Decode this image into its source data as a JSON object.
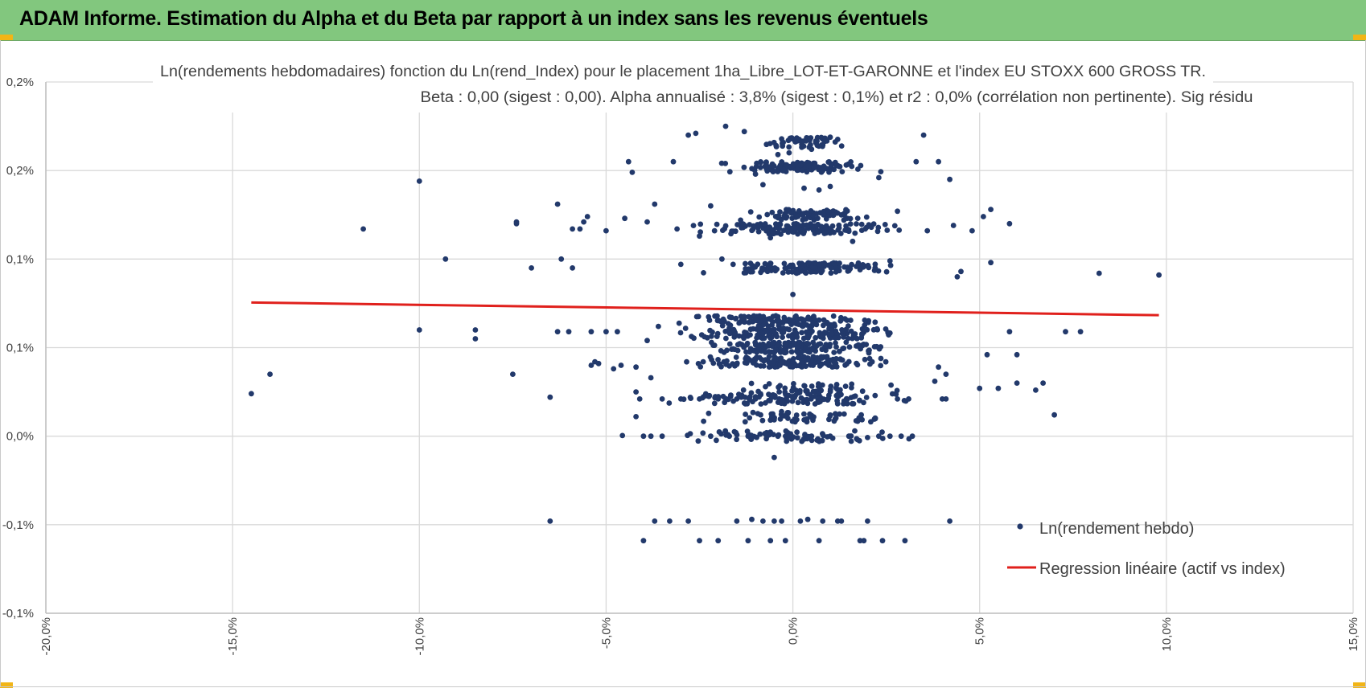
{
  "header": {
    "title": "ADAM Informe. Estimation du Alpha et du Beta par rapport à un index sans les revenus éventuels",
    "bg_color": "#82c77e",
    "corner_color": "#f2b516"
  },
  "chart_data": {
    "type": "scatter",
    "title_line1": "Ln(rendements hebdomadaires) fonction du Ln(rend_Index) pour le placement 1ha_Libre_LOT-ET-GARONNE et l'index EU STOXX 600 GROSS TR.",
    "title_line2": "Beta : 0,00 (sigest : 0,00). Alpha annualisé : 3,8% (sigest : 0,1%) et r2 : 0,0% (corrélation non pertinente). Sig résidu",
    "x_unit": "%",
    "xlim": [
      -20,
      15
    ],
    "ylim": [
      -0.1,
      0.2
    ],
    "x_tick_values": [
      -20,
      -15,
      -10,
      -5,
      0,
      5,
      10,
      15
    ],
    "x_tick_labels": [
      "-20,0%",
      "-15,0%",
      "-10,0%",
      "-5,0%",
      "0,0%",
      "5,0%",
      "10,0%",
      "15,0%"
    ],
    "y_tick_values": [
      -0.1,
      -0.05,
      0,
      0.05,
      0.1,
      0.15,
      0.2
    ],
    "y_tick_labels": [
      "-0,1%",
      "-0,1%",
      "0,0%",
      "0,1%",
      "0,1%",
      "0,2%",
      "0,2%"
    ],
    "grid": true,
    "legend_position": "bottom-right",
    "series": [
      {
        "name": "Ln(rendement hebdo)",
        "kind": "scatter",
        "color": "#22396b",
        "points": [
          [
            -14.5,
            0.024
          ],
          [
            -14.0,
            0.035
          ],
          [
            -11.5,
            0.117
          ],
          [
            -10.0,
            0.144
          ],
          [
            -10.0,
            0.06
          ],
          [
            -9.3,
            0.1
          ],
          [
            -8.5,
            0.06
          ],
          [
            -8.5,
            0.055
          ],
          [
            -7.5,
            0.035
          ],
          [
            -7.4,
            0.12
          ],
          [
            -7.4,
            0.121
          ],
          [
            -7.0,
            0.095
          ],
          [
            -6.5,
            0.022
          ],
          [
            -6.5,
            -0.048
          ],
          [
            -6.3,
            0.131
          ],
          [
            -6.3,
            0.059
          ],
          [
            -6.2,
            0.1
          ],
          [
            -6.0,
            0.059
          ],
          [
            -5.9,
            0.095
          ],
          [
            -5.9,
            0.117
          ],
          [
            -5.7,
            0.117
          ],
          [
            -5.6,
            0.121
          ],
          [
            -5.5,
            0.124
          ],
          [
            -5.4,
            0.059
          ],
          [
            -5.4,
            0.04
          ],
          [
            -5.3,
            0.042
          ],
          [
            -5.2,
            0.041
          ],
          [
            -5.0,
            0.059
          ],
          [
            -5.0,
            0.116
          ],
          [
            -4.8,
            0.038
          ],
          [
            -4.7,
            0.059
          ],
          [
            -4.6,
            0.04
          ],
          [
            -4.5,
            0.123
          ],
          [
            -4.4,
            0.155
          ],
          [
            -4.3,
            0.149
          ],
          [
            -4.2,
            0.025
          ],
          [
            -4.2,
            0.011
          ],
          [
            -4.2,
            0.039
          ],
          [
            -4.1,
            0.021
          ],
          [
            -4.0,
            -0.059
          ],
          [
            -4.0,
            0.0
          ],
          [
            -3.9,
            0.121
          ],
          [
            -3.9,
            0.054
          ],
          [
            -3.8,
            0.033
          ],
          [
            -3.8,
            0.0
          ],
          [
            -3.7,
            0.131
          ],
          [
            -3.7,
            -0.048
          ],
          [
            -3.6,
            0.062
          ],
          [
            -3.5,
            0.0
          ],
          [
            -3.5,
            0.021
          ],
          [
            -3.3,
            -0.048
          ],
          [
            -3.2,
            0.155
          ],
          [
            -3.1,
            0.117
          ],
          [
            -3.0,
            0.021
          ],
          [
            -2.8,
            0.17
          ],
          [
            -2.8,
            -0.048
          ],
          [
            -2.6,
            0.171
          ],
          [
            -2.5,
            0.021
          ],
          [
            -2.5,
            -0.059
          ],
          [
            -2.4,
            0.042
          ],
          [
            -2.2,
            0.0
          ],
          [
            -2.0,
            0.021
          ],
          [
            -2.0,
            -0.059
          ],
          [
            -1.8,
            0.175
          ],
          [
            -1.7,
            0.0
          ],
          [
            -1.5,
            -0.048
          ],
          [
            -1.5,
            0.021
          ],
          [
            -1.3,
            0.172
          ],
          [
            -1.2,
            -0.059
          ],
          [
            -1.2,
            0.0
          ],
          [
            -1.1,
            -0.047
          ],
          [
            -1.0,
            0.021
          ],
          [
            -0.8,
            -0.048
          ],
          [
            -0.7,
            0.0
          ],
          [
            -0.6,
            -0.059
          ],
          [
            -0.5,
            -0.048
          ],
          [
            -0.5,
            -0.012
          ],
          [
            -0.4,
            0.0
          ],
          [
            -0.3,
            -0.048
          ],
          [
            -0.2,
            -0.059
          ],
          [
            -0.1,
            0.0
          ],
          [
            0.0,
            0.08
          ],
          [
            0.2,
            -0.048
          ],
          [
            0.4,
            -0.047
          ],
          [
            0.5,
            0.0
          ],
          [
            0.7,
            -0.059
          ],
          [
            0.8,
            -0.048
          ],
          [
            1.0,
            0.0
          ],
          [
            1.2,
            -0.048
          ],
          [
            1.3,
            -0.048
          ],
          [
            1.5,
            0.0
          ],
          [
            1.8,
            -0.059
          ],
          [
            1.9,
            -0.059
          ],
          [
            2.0,
            -0.048
          ],
          [
            2.3,
            0.0
          ],
          [
            2.4,
            -0.059
          ],
          [
            2.6,
            0.0
          ],
          [
            2.8,
            0.021
          ],
          [
            2.9,
            0.0
          ],
          [
            3.0,
            -0.059
          ],
          [
            3.1,
            0.021
          ],
          [
            3.2,
            0.0
          ],
          [
            3.3,
            0.155
          ],
          [
            3.5,
            0.17
          ],
          [
            3.6,
            0.116
          ],
          [
            3.8,
            0.031
          ],
          [
            3.9,
            0.155
          ],
          [
            3.9,
            0.039
          ],
          [
            4.0,
            0.021
          ],
          [
            4.1,
            0.021
          ],
          [
            4.1,
            0.035
          ],
          [
            4.2,
            0.145
          ],
          [
            4.3,
            0.119
          ],
          [
            4.4,
            0.09
          ],
          [
            4.5,
            0.093
          ],
          [
            4.2,
            -0.048
          ],
          [
            4.8,
            0.116
          ],
          [
            5.0,
            0.027
          ],
          [
            5.1,
            0.124
          ],
          [
            5.2,
            0.046
          ],
          [
            5.3,
            0.128
          ],
          [
            5.3,
            0.098
          ],
          [
            5.5,
            0.027
          ],
          [
            5.8,
            0.12
          ],
          [
            5.8,
            0.059
          ],
          [
            6.0,
            0.046
          ],
          [
            6.0,
            0.03
          ],
          [
            6.5,
            0.026
          ],
          [
            6.7,
            0.03
          ],
          [
            7.0,
            0.012
          ],
          [
            7.3,
            0.059
          ],
          [
            7.7,
            0.059
          ],
          [
            8.2,
            0.092
          ],
          [
            9.8,
            0.091
          ],
          [
            1.6,
            0.11
          ],
          [
            2.1,
            0.118
          ],
          [
            -1.9,
            0.1
          ],
          [
            -0.2,
            0.125
          ],
          [
            0.3,
            0.14
          ],
          [
            0.7,
            0.139
          ],
          [
            1.0,
            0.141
          ],
          [
            -0.8,
            0.142
          ],
          [
            2.3,
            0.146
          ],
          [
            -2.2,
            0.13
          ],
          [
            -0.6,
            0.112
          ],
          [
            0.9,
            0.116
          ],
          [
            1.8,
            0.094
          ],
          [
            -1.6,
            0.097
          ],
          [
            0.1,
            0.092
          ],
          [
            0.6,
            0.095
          ],
          [
            2.6,
            0.099
          ],
          [
            -3.0,
            0.097
          ],
          [
            -2.5,
            0.113
          ],
          [
            -1.4,
            0.122
          ],
          [
            1.3,
            0.125
          ],
          [
            2.8,
            0.127
          ],
          [
            0.2,
            0.153
          ],
          [
            -0.1,
            0.16
          ],
          [
            0.5,
            0.162
          ],
          [
            -0.4,
            0.159
          ],
          [
            0.8,
            0.15
          ],
          [
            -1.0,
            0.148
          ]
        ]
      },
      {
        "name": "Regression linéaire (actif vs index)",
        "kind": "line",
        "color": "#e0201c",
        "x": [
          -14.5,
          9.8
        ],
        "y": [
          0.0755,
          0.0683
        ]
      }
    ],
    "clusters": [
      {
        "y": 0.0,
        "x_range": [
          -4.0,
          3.2
        ],
        "n": 70
      },
      {
        "y": 0.011,
        "x_range": [
          -2.5,
          2.7
        ],
        "n": 60
      },
      {
        "y": 0.021,
        "x_range": [
          -3.8,
          3.7
        ],
        "n": 110
      },
      {
        "y": 0.027,
        "x_range": [
          -1.5,
          2.8
        ],
        "n": 50
      },
      {
        "y": 0.042,
        "x_range": [
          -2.8,
          2.6
        ],
        "n": 150
      },
      {
        "y": 0.05,
        "x_range": [
          -2.5,
          2.7
        ],
        "n": 150
      },
      {
        "y": 0.058,
        "x_range": [
          -3.0,
          3.0
        ],
        "n": 160
      },
      {
        "y": 0.065,
        "x_range": [
          -2.9,
          2.6
        ],
        "n": 120
      },
      {
        "y": 0.095,
        "x_range": [
          -2.2,
          2.6
        ],
        "n": 130
      },
      {
        "y": 0.117,
        "x_range": [
          -2.7,
          3.0
        ],
        "n": 150
      },
      {
        "y": 0.125,
        "x_range": [
          -1.2,
          2.3
        ],
        "n": 70
      },
      {
        "y": 0.152,
        "x_range": [
          -1.8,
          2.3
        ],
        "n": 120
      },
      {
        "y": 0.166,
        "x_range": [
          -1.0,
          1.5
        ],
        "n": 60
      }
    ]
  }
}
